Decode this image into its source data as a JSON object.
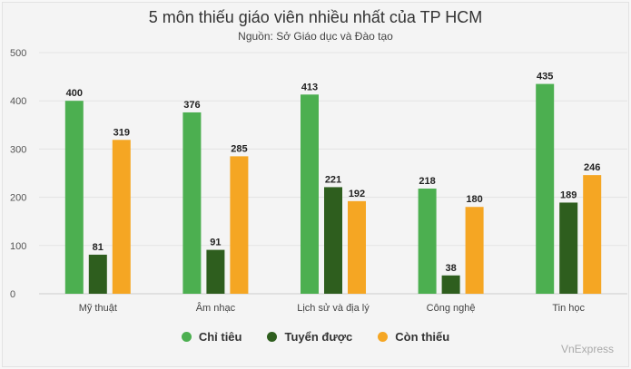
{
  "chart_data": {
    "type": "bar",
    "title": "5 môn thiếu giáo viên nhiều nhất của TP HCM",
    "subtitle": "Nguồn: Sở Giáo dục và Đào tạo",
    "categories": [
      "Mỹ thuật",
      "Âm nhạc",
      "Lịch sử và địa lý",
      "Công nghệ",
      "Tin học"
    ],
    "series": [
      {
        "name": "Chỉ tiêu",
        "color": "#4caf50",
        "values": [
          400,
          376,
          413,
          218,
          435
        ]
      },
      {
        "name": "Tuyển được",
        "color": "#2e5e1e",
        "values": [
          81,
          91,
          221,
          38,
          189
        ]
      },
      {
        "name": "Còn thiếu",
        "color": "#f5a623",
        "values": [
          319,
          285,
          192,
          180,
          246
        ]
      }
    ],
    "ylim": [
      0,
      500
    ],
    "yticks": [
      0,
      100,
      200,
      300,
      400,
      500
    ],
    "grid": true,
    "legend": "bottom-center",
    "credit": "VnExpress"
  }
}
